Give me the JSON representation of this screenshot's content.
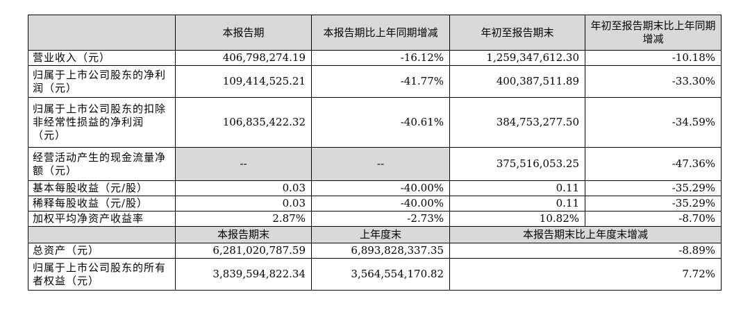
{
  "headers": {
    "blank": "",
    "col1": "本报告期",
    "col2": "本报告期比上年同期增减",
    "col3": "年初至报告期末",
    "col4": "年初至报告期末比上年同期增减"
  },
  "rows": [
    {
      "label": "营业收入（元）",
      "v1": "406,798,274.19",
      "v2": "-16.12%",
      "v3": "1,259,347,612.30",
      "v4": "-10.18%"
    },
    {
      "label": "归属于上市公司股东的净利润（元）",
      "v1": "109,414,525.21",
      "v2": "-41.77%",
      "v3": "400,387,511.89",
      "v4": "-33.30%"
    },
    {
      "label": "归属于上市公司股东的扣除非经常性损益的净利润（元）",
      "v1": "106,835,422.32",
      "v2": "-40.61%",
      "v3": "384,753,277.50",
      "v4": "-34.59%"
    },
    {
      "label": "经营活动产生的现金流量净额（元）",
      "v1": "--",
      "v2": "--",
      "v3": "375,516,053.25",
      "v4": "-47.36%"
    },
    {
      "label": "基本每股收益（元/股）",
      "v1": "0.03",
      "v2": "-40.00%",
      "v3": "0.11",
      "v4": "-35.29%"
    },
    {
      "label": "稀释每股收益（元/股）",
      "v1": "0.03",
      "v2": "-40.00%",
      "v3": "0.11",
      "v4": "-35.29%"
    },
    {
      "label": "加权平均净资产收益率",
      "v1": "2.87%",
      "v2": "-2.73%",
      "v3": "10.82%",
      "v4": "-8.70%"
    }
  ],
  "headers2": {
    "col1": "本报告期末",
    "col2": "上年度末",
    "col3": "本报告期末比上年度末增减"
  },
  "rows2": [
    {
      "label": "总资产（元）",
      "v1": "6,281,020,787.59",
      "v2": "6,893,828,337.35",
      "v3": "-8.89%"
    },
    {
      "label": "归属于上市公司股东的所有者权益（元）",
      "v1": "3,839,594,822.34",
      "v2": "3,564,554,170.82",
      "v3": "7.72%"
    }
  ]
}
